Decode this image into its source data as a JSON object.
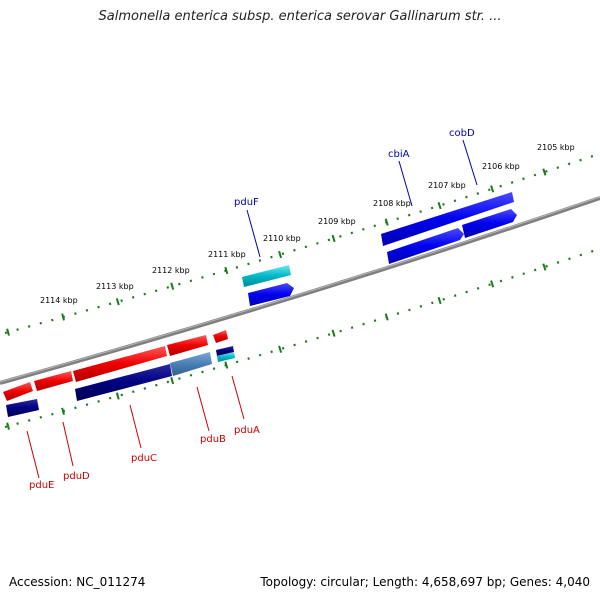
{
  "title": "Salmonella enterica subsp. enterica serovar Gallinarum str. ...",
  "footer": {
    "accession": "Accession: NC_011274",
    "info": "Topology: circular; Length: 4,658,697 bp; Genes: 4,040"
  },
  "kbp_labels": [
    "2114 kbp",
    "2113 kbp",
    "2112 kbp",
    "2111 kbp",
    "2110 kbp",
    "2109 kbp",
    "2108 kbp",
    "2107 kbp",
    "2106 kbp",
    "2105 kbp"
  ],
  "genes": [
    {
      "name": "pduE",
      "strand": "reverse",
      "label_color": "#cc0000"
    },
    {
      "name": "pduD",
      "strand": "reverse",
      "label_color": "#cc0000"
    },
    {
      "name": "pduC",
      "strand": "reverse",
      "label_color": "#cc0000"
    },
    {
      "name": "pduB",
      "strand": "reverse",
      "label_color": "#cc0000"
    },
    {
      "name": "pduA",
      "strand": "reverse",
      "label_color": "#cc0000"
    },
    {
      "name": "pduF",
      "strand": "forward",
      "label_color": "#0000aa"
    },
    {
      "name": "cbiA",
      "strand": "forward",
      "label_color": "#0000aa"
    },
    {
      "name": "cobD",
      "strand": "forward",
      "label_color": "#0000aa"
    }
  ],
  "colors": {
    "backbone": "#7f7f7f",
    "tick": "#1a7a1a",
    "reverse_gene": "#ee0000",
    "reverse_cds": "#000080",
    "forward_gene": "#0000ee",
    "cyan_feature": "#00b8c8",
    "steel_feature": "#4a7fb5"
  }
}
